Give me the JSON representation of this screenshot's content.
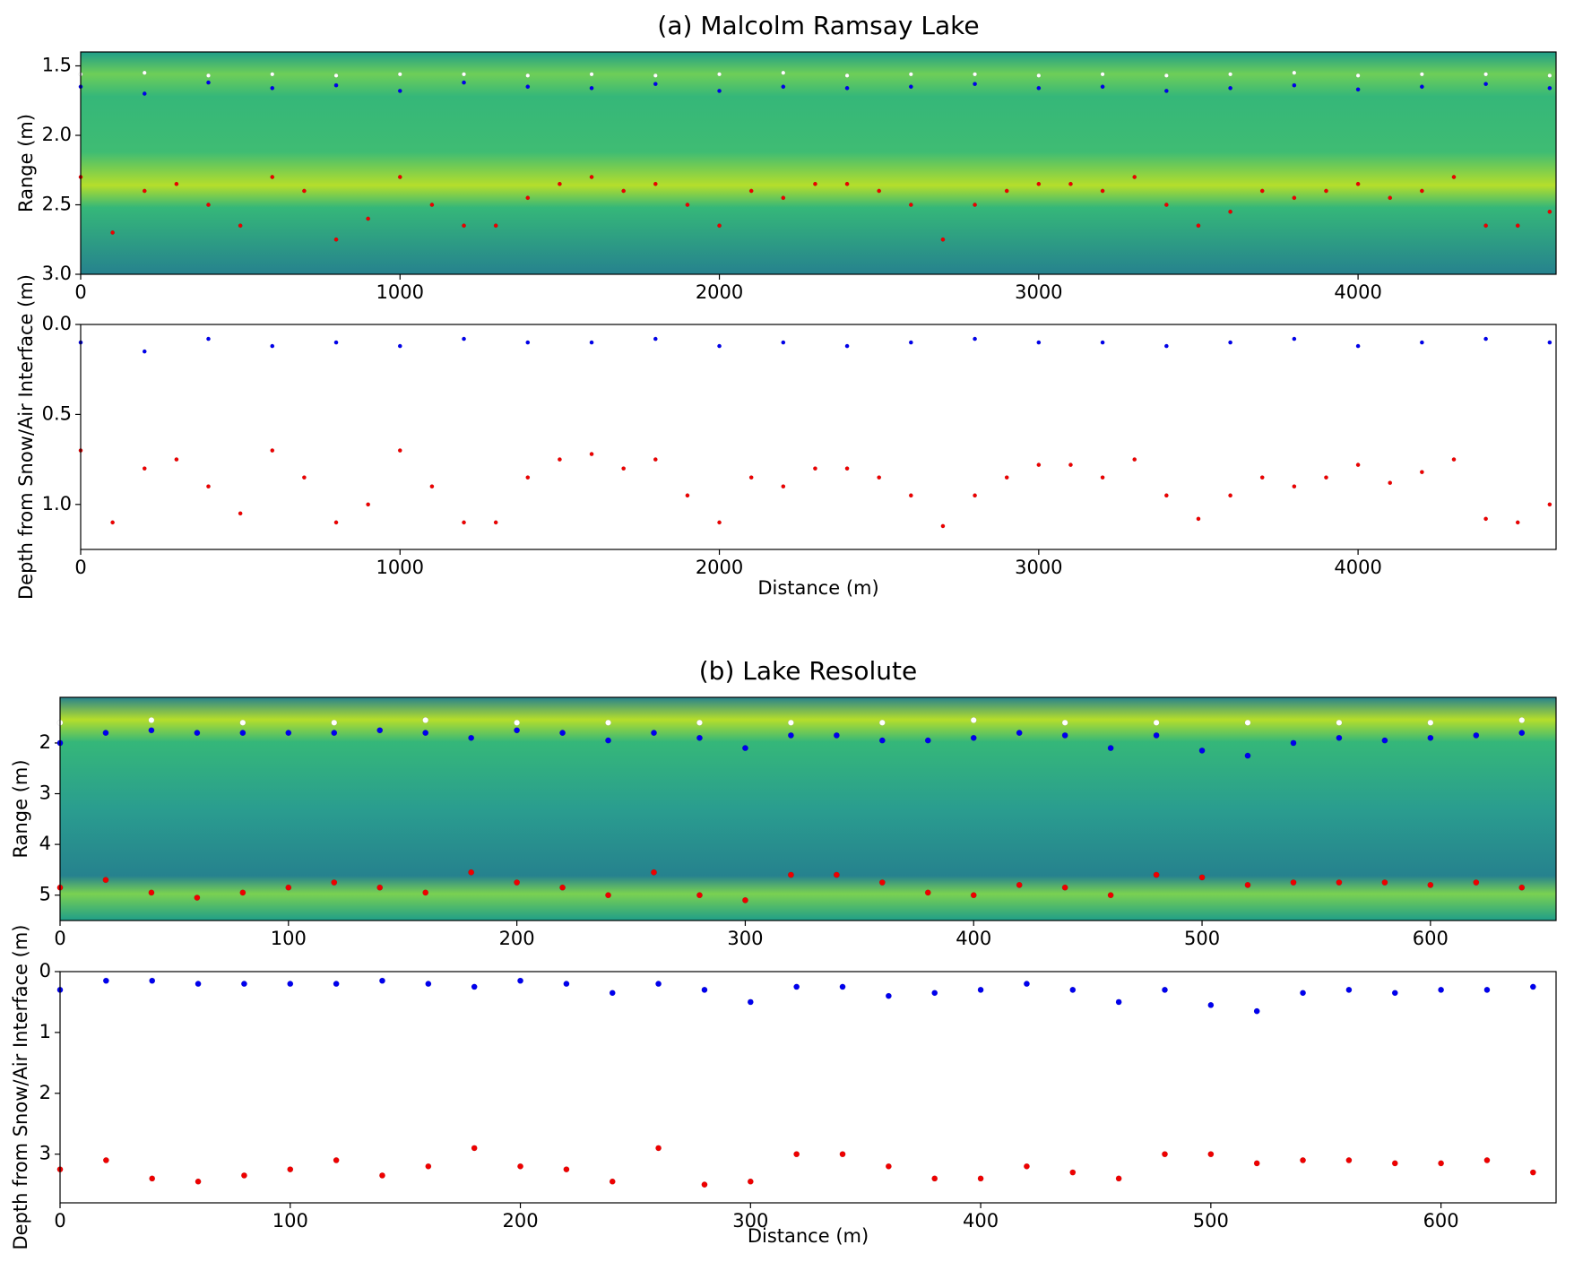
{
  "chart_data": [
    {
      "type": "scatter",
      "title": "(a) Malcolm Ramsay Lake",
      "ylabel": "Range (m)",
      "background": "radargram",
      "xlim": [
        0,
        4620
      ],
      "xticks": [
        0,
        1000,
        2000,
        3000,
        4000
      ],
      "ylim": [
        3.0,
        1.4
      ],
      "yticks": [
        1.5,
        {
          "value": 2,
          "label": "2.0"
        },
        2.5,
        {
          "value": 3,
          "label": "3.0"
        }
      ],
      "series": [
        {
          "color": "#ffffff",
          "x": [
            0,
            200,
            400,
            600,
            800,
            1000,
            1200,
            1400,
            1600,
            1800,
            2000,
            2200,
            2400,
            2600,
            2800,
            3000,
            3200,
            3400,
            3600,
            3800,
            4000,
            4200,
            4400,
            4600
          ],
          "values": [
            1.56,
            1.55,
            1.57,
            1.56,
            1.57,
            1.56,
            1.56,
            1.57,
            1.56,
            1.57,
            1.56,
            1.55,
            1.57,
            1.56,
            1.56,
            1.57,
            1.56,
            1.57,
            1.56,
            1.55,
            1.57,
            1.56,
            1.56,
            1.57
          ]
        },
        {
          "color": "#0000ee",
          "x": [
            0,
            200,
            400,
            600,
            800,
            1000,
            1200,
            1400,
            1600,
            1800,
            2000,
            2200,
            2400,
            2600,
            2800,
            3000,
            3200,
            3400,
            3600,
            3800,
            4000,
            4200,
            4400,
            4600
          ],
          "values": [
            1.65,
            1.7,
            1.62,
            1.66,
            1.64,
            1.68,
            1.62,
            1.65,
            1.66,
            1.63,
            1.68,
            1.65,
            1.66,
            1.65,
            1.63,
            1.66,
            1.65,
            1.68,
            1.66,
            1.64,
            1.67,
            1.65,
            1.63,
            1.66
          ]
        },
        {
          "color": "#ee0000",
          "x": [
            0,
            100,
            200,
            300,
            400,
            500,
            600,
            700,
            800,
            900,
            1000,
            1100,
            1200,
            1300,
            1400,
            1500,
            1600,
            1700,
            1800,
            1900,
            2000,
            2100,
            2200,
            2300,
            2400,
            2500,
            2600,
            2700,
            2800,
            2900,
            3000,
            3100,
            3200,
            3300,
            3400,
            3500,
            3600,
            3700,
            3800,
            3900,
            4000,
            4100,
            4200,
            4300,
            4400,
            4500,
            4600
          ],
          "values": [
            2.3,
            2.7,
            2.4,
            2.35,
            2.5,
            2.65,
            2.3,
            2.4,
            2.75,
            2.6,
            2.3,
            2.5,
            2.65,
            2.65,
            2.45,
            2.35,
            2.3,
            2.4,
            2.35,
            2.5,
            2.65,
            2.4,
            2.45,
            2.35,
            2.35,
            2.4,
            2.5,
            2.75,
            2.5,
            2.4,
            2.35,
            2.35,
            2.4,
            2.3,
            2.5,
            2.65,
            2.55,
            2.4,
            2.45,
            2.4,
            2.35,
            2.45,
            2.4,
            2.3,
            2.65,
            2.65,
            2.55
          ]
        }
      ]
    },
    {
      "type": "scatter",
      "ylabel": "Depth from Snow/Air Interface (m)",
      "xlabel": "Distance (m)",
      "xlim": [
        0,
        4620
      ],
      "xticks": [
        0,
        1000,
        2000,
        3000,
        4000
      ],
      "ylim": [
        1.25,
        0
      ],
      "yticks": [
        {
          "value": 0,
          "label": "0.0"
        },
        0.5,
        {
          "value": 1,
          "label": "1.0"
        }
      ],
      "series": [
        {
          "color": "#0000ee",
          "x": [
            0,
            200,
            400,
            600,
            800,
            1000,
            1200,
            1400,
            1600,
            1800,
            2000,
            2200,
            2400,
            2600,
            2800,
            3000,
            3200,
            3400,
            3600,
            3800,
            4000,
            4200,
            4400,
            4600
          ],
          "values": [
            0.1,
            0.15,
            0.08,
            0.12,
            0.1,
            0.12,
            0.08,
            0.1,
            0.1,
            0.08,
            0.12,
            0.1,
            0.12,
            0.1,
            0.08,
            0.1,
            0.1,
            0.12,
            0.1,
            0.08,
            0.12,
            0.1,
            0.08,
            0.1
          ]
        },
        {
          "color": "#ee0000",
          "x": [
            0,
            100,
            200,
            300,
            400,
            500,
            600,
            700,
            800,
            900,
            1000,
            1100,
            1200,
            1300,
            1400,
            1500,
            1600,
            1700,
            1800,
            1900,
            2000,
            2100,
            2200,
            2300,
            2400,
            2500,
            2600,
            2700,
            2800,
            2900,
            3000,
            3100,
            3200,
            3300,
            3400,
            3500,
            3600,
            3700,
            3800,
            3900,
            4000,
            4100,
            4200,
            4300,
            4400,
            4500,
            4600
          ],
          "values": [
            0.7,
            1.1,
            0.8,
            0.75,
            0.9,
            1.05,
            0.7,
            0.85,
            1.1,
            1.0,
            0.7,
            0.9,
            1.1,
            1.1,
            0.85,
            0.75,
            0.72,
            0.8,
            0.75,
            0.95,
            1.1,
            0.85,
            0.9,
            0.8,
            0.8,
            0.85,
            0.95,
            1.12,
            0.95,
            0.85,
            0.78,
            0.78,
            0.85,
            0.75,
            0.95,
            1.08,
            0.95,
            0.85,
            0.9,
            0.85,
            0.78,
            0.88,
            0.82,
            0.75,
            1.08,
            1.1,
            1.0
          ]
        }
      ]
    },
    {
      "type": "scatter",
      "title": "(b) Lake Resolute",
      "ylabel": "Range (m)",
      "background": "radargram",
      "xlim": [
        0,
        655
      ],
      "xticks": [
        0,
        100,
        200,
        300,
        400,
        500,
        600
      ],
      "ylim": [
        5.5,
        1.1
      ],
      "yticks": [
        2,
        3,
        4,
        5
      ],
      "series": [
        {
          "color": "#ffffff",
          "x": [
            0,
            40,
            80,
            120,
            160,
            200,
            240,
            280,
            320,
            360,
            400,
            440,
            480,
            520,
            560,
            600,
            640
          ],
          "values": [
            1.6,
            1.55,
            1.6,
            1.6,
            1.55,
            1.6,
            1.6,
            1.6,
            1.6,
            1.6,
            1.55,
            1.6,
            1.6,
            1.6,
            1.6,
            1.6,
            1.55
          ]
        },
        {
          "color": "#0000ee",
          "x": [
            0,
            20,
            40,
            60,
            80,
            100,
            120,
            140,
            160,
            180,
            200,
            220,
            240,
            260,
            280,
            300,
            320,
            340,
            360,
            380,
            400,
            420,
            440,
            460,
            480,
            500,
            520,
            540,
            560,
            580,
            600,
            620,
            640
          ],
          "values": [
            2.0,
            1.8,
            1.75,
            1.8,
            1.8,
            1.8,
            1.8,
            1.75,
            1.8,
            1.9,
            1.75,
            1.8,
            1.95,
            1.8,
            1.9,
            2.1,
            1.85,
            1.85,
            1.95,
            1.95,
            1.9,
            1.8,
            1.85,
            2.1,
            1.85,
            2.15,
            2.25,
            2.0,
            1.9,
            1.95,
            1.9,
            1.85,
            1.8
          ]
        },
        {
          "color": "#ee0000",
          "x": [
            0,
            20,
            40,
            60,
            80,
            100,
            120,
            140,
            160,
            180,
            200,
            220,
            240,
            260,
            280,
            300,
            320,
            340,
            360,
            380,
            400,
            420,
            440,
            460,
            480,
            500,
            520,
            540,
            560,
            580,
            600,
            620,
            640
          ],
          "values": [
            4.85,
            4.7,
            4.95,
            5.05,
            4.95,
            4.85,
            4.75,
            4.85,
            4.95,
            4.55,
            4.75,
            4.85,
            5.0,
            4.55,
            5.0,
            5.1,
            4.6,
            4.6,
            4.75,
            4.95,
            5.0,
            4.8,
            4.85,
            5.0,
            4.6,
            4.65,
            4.8,
            4.75,
            4.75,
            4.75,
            4.8,
            4.75,
            4.85
          ]
        }
      ]
    },
    {
      "type": "scatter",
      "ylabel": "Depth from Snow/Air Interface (m)",
      "xlabel": "Distance (m)",
      "xlim": [
        0,
        650
      ],
      "xticks": [
        0,
        100,
        200,
        300,
        400,
        500,
        600
      ],
      "ylim": [
        3.8,
        0
      ],
      "yticks": [
        0,
        1,
        2,
        3
      ],
      "series": [
        {
          "color": "#0000ee",
          "x": [
            0,
            20,
            40,
            60,
            80,
            100,
            120,
            140,
            160,
            180,
            200,
            220,
            240,
            260,
            280,
            300,
            320,
            340,
            360,
            380,
            400,
            420,
            440,
            460,
            480,
            500,
            520,
            540,
            560,
            580,
            600,
            620,
            640
          ],
          "values": [
            0.3,
            0.15,
            0.15,
            0.2,
            0.2,
            0.2,
            0.2,
            0.15,
            0.2,
            0.25,
            0.15,
            0.2,
            0.35,
            0.2,
            0.3,
            0.5,
            0.25,
            0.25,
            0.4,
            0.35,
            0.3,
            0.2,
            0.3,
            0.5,
            0.3,
            0.55,
            0.65,
            0.35,
            0.3,
            0.35,
            0.3,
            0.3,
            0.25
          ]
        },
        {
          "color": "#ee0000",
          "x": [
            0,
            20,
            40,
            60,
            80,
            100,
            120,
            140,
            160,
            180,
            200,
            220,
            240,
            260,
            280,
            300,
            320,
            340,
            360,
            380,
            400,
            420,
            440,
            460,
            480,
            500,
            520,
            540,
            560,
            580,
            600,
            620,
            640
          ],
          "values": [
            3.25,
            3.1,
            3.4,
            3.45,
            3.35,
            3.25,
            3.1,
            3.35,
            3.2,
            2.9,
            3.2,
            3.25,
            3.45,
            2.9,
            3.5,
            3.45,
            3.0,
            3.0,
            3.2,
            3.4,
            3.4,
            3.2,
            3.3,
            3.4,
            3.0,
            3.0,
            3.15,
            3.1,
            3.1,
            3.15,
            3.15,
            3.1,
            3.3
          ]
        }
      ]
    }
  ]
}
